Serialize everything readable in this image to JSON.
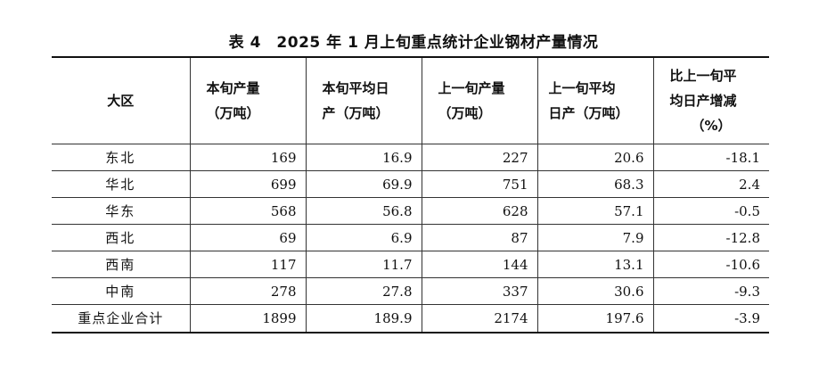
{
  "caption": "表 4　2025 年 1 月上旬重点统计企业钢材产量情况",
  "table": {
    "headers": [
      {
        "lines": [
          "大区"
        ]
      },
      {
        "lines": [
          "本旬产量",
          "（万吨）"
        ]
      },
      {
        "lines": [
          "本旬平均日",
          "产（万吨）"
        ]
      },
      {
        "lines": [
          "上一旬产量",
          "（万吨）"
        ]
      },
      {
        "lines": [
          "上一旬平均",
          "日产（万吨）"
        ]
      },
      {
        "lines": [
          "比上一旬平",
          "均日产增减",
          "（%）"
        ]
      }
    ],
    "rows": [
      {
        "region": "东北",
        "cells": [
          "169",
          "16.9",
          "227",
          "20.6",
          "-18.1"
        ]
      },
      {
        "region": "华北",
        "cells": [
          "699",
          "69.9",
          "751",
          "68.3",
          "2.4"
        ]
      },
      {
        "region": "华东",
        "cells": [
          "568",
          "56.8",
          "628",
          "57.1",
          "-0.5"
        ]
      },
      {
        "region": "西北",
        "cells": [
          "69",
          "6.9",
          "87",
          "7.9",
          "-12.8"
        ]
      },
      {
        "region": "西南",
        "cells": [
          "117",
          "11.7",
          "144",
          "13.1",
          "-10.6"
        ]
      },
      {
        "region": "中南",
        "cells": [
          "278",
          "27.8",
          "337",
          "30.6",
          "-9.3"
        ]
      },
      {
        "region": "重点企业合计",
        "cells": [
          "1899",
          "189.9",
          "2174",
          "197.6",
          "-3.9"
        ]
      }
    ]
  }
}
